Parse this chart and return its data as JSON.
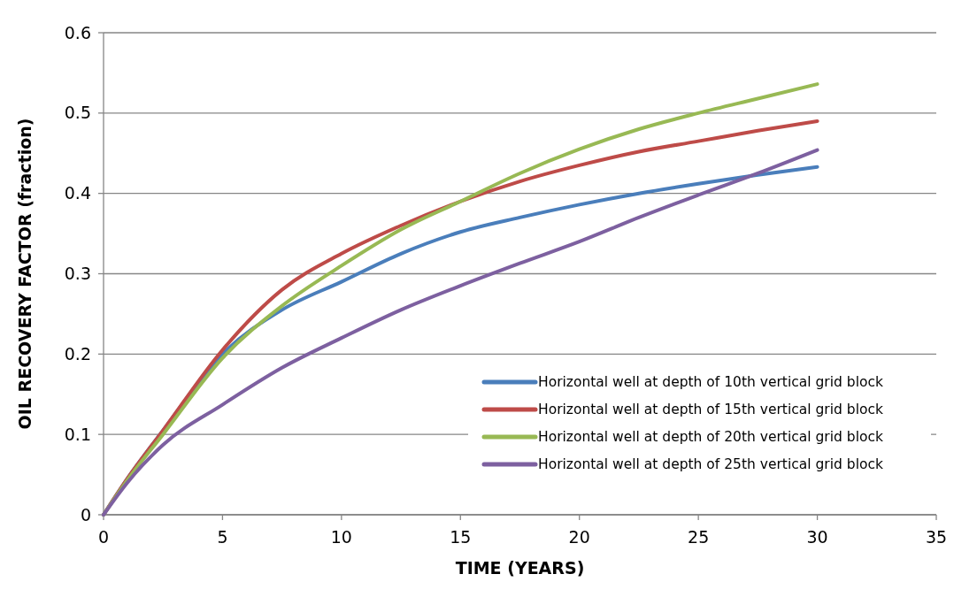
{
  "chart_data": {
    "type": "line",
    "xlabel": "TIME (YEARS)",
    "ylabel": "OIL RECOVERY FACTOR (fraction)",
    "x": [
      0,
      1,
      2.5,
      5,
      7.5,
      10,
      12.5,
      15,
      17.5,
      20,
      22.5,
      25,
      27.5,
      30
    ],
    "series": [
      {
        "name": "Horizontal well at depth of 10th vertical grid block",
        "color": "#4a7ebb",
        "values": [
          0,
          0.045,
          0.105,
          0.2,
          0.255,
          0.29,
          0.325,
          0.352,
          0.37,
          0.386,
          0.4,
          0.412,
          0.423,
          0.433
        ]
      },
      {
        "name": "Horizontal well at depth of 15th vertical grid block",
        "color": "#be4b48",
        "values": [
          0,
          0.045,
          0.105,
          0.205,
          0.28,
          0.325,
          0.36,
          0.39,
          0.415,
          0.435,
          0.452,
          0.465,
          0.478,
          0.49
        ]
      },
      {
        "name": "Horizontal well at depth of 20th vertical grid block",
        "color": "#98b954",
        "values": [
          0,
          0.043,
          0.1,
          0.195,
          0.26,
          0.31,
          0.355,
          0.39,
          0.425,
          0.455,
          0.48,
          0.5,
          0.518,
          0.536
        ]
      },
      {
        "name": "Horizontal well at depth of 25th vertical grid block",
        "color": "#7d60a0",
        "values": [
          0,
          0.04,
          0.087,
          0.137,
          0.183,
          0.22,
          0.255,
          0.285,
          0.313,
          0.34,
          0.37,
          0.398,
          0.425,
          0.454
        ]
      }
    ],
    "xlim": [
      0,
      35
    ],
    "xticks": [
      0,
      5,
      10,
      15,
      20,
      25,
      30,
      35
    ],
    "ylim": [
      0,
      0.6
    ],
    "yticks": [
      0,
      0.1,
      0.2,
      0.3,
      0.4,
      0.5,
      0.6
    ],
    "grid": "y",
    "legend": "bottom right",
    "marker": "none",
    "line_style": "solid"
  }
}
